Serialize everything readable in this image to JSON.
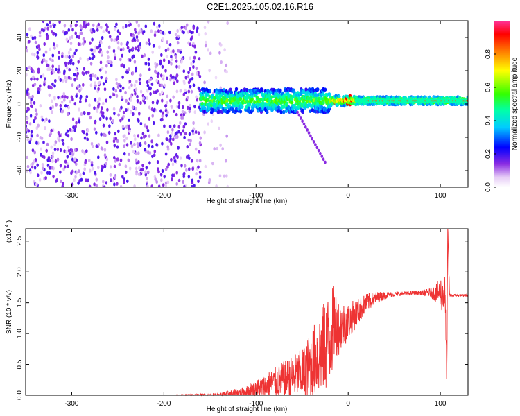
{
  "title": "C2E1.2025.105.02.16.R16",
  "chart_data": [
    {
      "type": "heatmap",
      "xlabel": "Height of straight line (km)",
      "ylabel": "Frequency (Hz)",
      "xlim": [
        -350,
        130
      ],
      "ylim": [
        -50,
        50
      ],
      "xticks": [
        -300,
        -200,
        -100,
        0,
        100
      ],
      "yticks": [
        -40,
        -20,
        0,
        20,
        40
      ],
      "colorbar": {
        "label": "Normalized spectral amplitude",
        "range": [
          0,
          1
        ],
        "ticks": [
          "0.0",
          "0.2",
          "0.4",
          "0.6",
          "0.8"
        ]
      },
      "features": {
        "noise_region_x": [
          -350,
          -130
        ],
        "signal_band_center_hz": 2,
        "branch_end": [
          -25,
          -35
        ]
      }
    },
    {
      "type": "line",
      "xlabel": "Height of straight line (km)",
      "ylabel": "SNR (10 * v/v)",
      "multiplier": "(x10",
      "multiplier_exp": "4",
      "xlim": [
        -350,
        130
      ],
      "ylim": [
        0,
        2.7
      ],
      "xticks": [
        -300,
        -200,
        -100,
        0,
        100
      ],
      "yticks": [
        "0.0",
        "0.5",
        "1.0",
        "1.5",
        "2.0",
        "2.5"
      ],
      "line_color": "#ee3333",
      "series": [
        {
          "x": [
            -350,
            -200,
            -140,
            -110,
            -90,
            -70,
            -50,
            -40,
            -30,
            -20,
            -15,
            -10,
            0,
            10,
            20,
            30,
            40,
            50,
            60,
            70,
            80,
            90,
            95,
            100,
            103,
            105,
            107,
            108,
            110,
            115,
            120,
            130
          ],
          "values": [
            0.0,
            0.0,
            0.01,
            0.05,
            0.15,
            0.25,
            0.35,
            0.5,
            0.7,
            0.9,
            1.2,
            1.1,
            1.2,
            1.35,
            1.5,
            1.58,
            1.62,
            1.64,
            1.65,
            1.66,
            1.66,
            1.66,
            1.66,
            1.66,
            1.66,
            1.66,
            0.3,
            2.65,
            1.62,
            1.62,
            1.62,
            1.62
          ],
          "noise": [
            0.0,
            0.0,
            0.02,
            0.1,
            0.2,
            0.3,
            0.4,
            0.55,
            0.7,
            0.8,
            0.6,
            0.45,
            0.3,
            0.22,
            0.15,
            0.1,
            0.06,
            0.04,
            0.03,
            0.03,
            0.04,
            0.08,
            0.15,
            0.25,
            0.35,
            0.3,
            0.2,
            0.2,
            0.03,
            0.02,
            0.02,
            0.02
          ]
        }
      ]
    }
  ]
}
